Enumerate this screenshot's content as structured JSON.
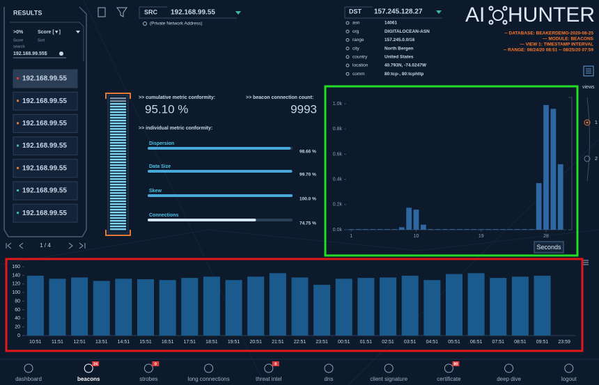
{
  "results": {
    "title": "RESULTS",
    "filter": ">0%",
    "sort": "Score [▼]",
    "filter_caption": "Score",
    "sort_caption": "Sort",
    "search_caption": "search",
    "search": "192.168.99.55$",
    "items": [
      "192.168.99.55",
      "192.168.99.55",
      "192.168.99.55",
      "192.168.99.55",
      "192.168.99.55",
      "192.168.99.55",
      "192.168.99.55"
    ],
    "page": "1 / 4"
  },
  "src": {
    "label": "SRC",
    "ip": "192.168.99.55",
    "note": "(Private Network Address)"
  },
  "dst": {
    "label": "DST",
    "ip": "157.245.128.27",
    "fields": [
      {
        "key": "asn",
        "value": "14061"
      },
      {
        "key": "org",
        "value": "DIGITALOCEAN-ASN"
      },
      {
        "key": "range",
        "value": "157.245.0.0/16"
      },
      {
        "key": "city",
        "value": "North Bergen"
      },
      {
        "key": "country",
        "value": "United States"
      },
      {
        "key": "location",
        "value": "40.793N, -74.0247W"
      },
      {
        "key": "comm",
        "value": "80:tcp-, 80:tcphttp"
      }
    ]
  },
  "logo": {
    "left": "AI",
    "right": "HUNTER"
  },
  "info": [
    "-- DATABASE: BEAKERDEMO-2020-08-25",
    "--- MODULE: BEACONS",
    "--- VIEW 1: TIMESTAMP INTERVAL",
    "-- RANGE: 08/24/20 08:51 -- 08/25/20 07:59"
  ],
  "summary": {
    "cumulative_label": ">> cumulative metric conformity:",
    "cumulative": "95.10 %",
    "count_label": ">> beacon connection count:",
    "count": "9993",
    "individual_label": ">> individual metric conformity:"
  },
  "metrics": {
    "xlim": [
      0,
      100
    ],
    "items": [
      {
        "name": "Dispersion",
        "value": 98.66,
        "value_label": "98.66 %"
      },
      {
        "name": "Data Size",
        "value": 99.7,
        "value_label": "99.70 %"
      },
      {
        "name": "Skew",
        "value": 100.0,
        "value_label": "100.0 %"
      },
      {
        "name": "Connections",
        "value": 74.75,
        "value_label": "74.75 %"
      }
    ]
  },
  "views": {
    "title": "views",
    "options": [
      "1",
      "2"
    ]
  },
  "chart_data": [
    {
      "type": "bar",
      "x": [
        1,
        2,
        3,
        4,
        5,
        6,
        7,
        8,
        9,
        10,
        11,
        12,
        13,
        14,
        15,
        16,
        17,
        18,
        19,
        20,
        21,
        22,
        23,
        24,
        25,
        26,
        27,
        28,
        29,
        30
      ],
      "values": [
        5,
        5,
        5,
        5,
        5,
        5,
        5,
        20,
        175,
        160,
        40,
        5,
        5,
        5,
        5,
        5,
        5,
        5,
        5,
        5,
        5,
        5,
        5,
        5,
        5,
        5,
        370,
        990,
        960,
        520
      ],
      "xlim": [
        0.3,
        30.7
      ],
      "xticks": [
        1,
        10,
        19,
        28
      ],
      "ylim": [
        0,
        1050
      ],
      "yticks": [
        {
          "value": 0,
          "label": "0.0k"
        },
        {
          "value": 200,
          "label": "0.2k"
        },
        {
          "value": 400,
          "label": "0.4k"
        },
        {
          "value": 600,
          "label": "0.6k"
        },
        {
          "value": 800,
          "label": "0.8k"
        },
        {
          "value": 1000,
          "label": "1.0k"
        }
      ],
      "xlabel": "Seconds",
      "color": "#2f67a0"
    },
    {
      "type": "bar",
      "categories": [
        "10:51",
        "11:51",
        "12:51",
        "13:51",
        "14:51",
        "15:51",
        "16:51",
        "17:51",
        "18:51",
        "19:51",
        "20:51",
        "21:51",
        "22:51",
        "23:51",
        "00:51",
        "01:51",
        "02:51",
        "03:51",
        "04:51",
        "05:51",
        "06:51",
        "07:51",
        "08:51",
        "09:51",
        "23:59"
      ],
      "values": [
        139,
        132,
        135,
        127,
        132,
        131,
        129,
        134,
        137,
        129,
        137,
        145,
        135,
        118,
        132,
        134,
        135,
        139,
        129,
        143,
        145,
        134,
        137,
        139,
        null
      ],
      "ylim": [
        0,
        165
      ],
      "yticks": [
        0,
        20,
        40,
        60,
        80,
        100,
        120,
        140,
        160
      ],
      "color": "#1b5a8c"
    }
  ],
  "nav": [
    {
      "label": "dashboard"
    },
    {
      "label": "beacons",
      "badge": "24"
    },
    {
      "label": "strobes",
      "badge": "0"
    },
    {
      "label": "long connections"
    },
    {
      "label": "threat intel",
      "badge": "0"
    },
    {
      "label": "dns"
    },
    {
      "label": "client signature"
    },
    {
      "label": "certificate",
      "badge": "80"
    },
    {
      "label": "deep dive"
    },
    {
      "label": "logout"
    }
  ]
}
